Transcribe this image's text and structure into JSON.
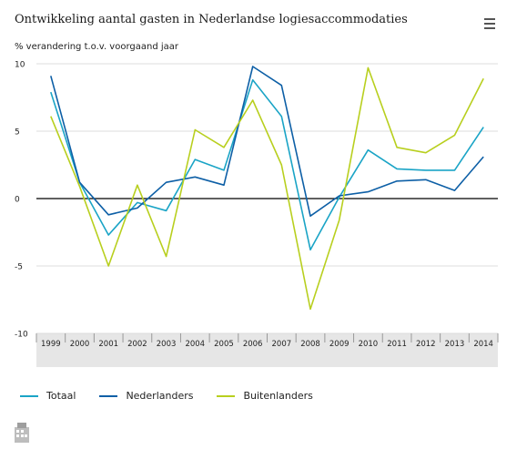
{
  "chart_data": {
    "type": "line",
    "title": "Ontwikkeling aantal gasten in Nederlandse logiesaccommodaties",
    "subtitle": "% verandering t.o.v. voorgaand jaar",
    "categories": [
      "1999",
      "2000",
      "2001",
      "2002",
      "2003",
      "2004",
      "2005",
      "2006",
      "2007",
      "2008",
      "2009",
      "2010",
      "2011",
      "2012",
      "2013",
      "2014"
    ],
    "ylim": [
      -10,
      10
    ],
    "yticks": [
      10,
      5,
      0,
      -5,
      -10
    ],
    "series": [
      {
        "name": "Totaal",
        "color": "#1aa4c6",
        "values": [
          7.9,
          1.2,
          -2.7,
          -0.3,
          -0.9,
          2.9,
          2.1,
          8.8,
          6.1,
          -3.8,
          0.1,
          3.6,
          2.2,
          2.1,
          2.1,
          5.3
        ]
      },
      {
        "name": "Nederlanders",
        "color": "#0d5fa6",
        "values": [
          9.1,
          1.2,
          -1.2,
          -0.7,
          1.2,
          1.6,
          1.0,
          9.8,
          8.4,
          -1.3,
          0.2,
          0.5,
          1.3,
          1.4,
          0.6,
          3.1
        ]
      },
      {
        "name": "Buitenlanders",
        "color": "#b8cf1e",
        "values": [
          6.1,
          0.9,
          -5.0,
          1.0,
          -4.3,
          5.1,
          3.8,
          7.3,
          2.5,
          -8.2,
          -1.6,
          9.7,
          3.8,
          3.4,
          4.7,
          8.9
        ]
      }
    ],
    "grid": true,
    "legend_position": "bottom-left"
  },
  "icons": {
    "menu": "hamburger-menu-icon",
    "logo": "cbs-logo-icon"
  }
}
